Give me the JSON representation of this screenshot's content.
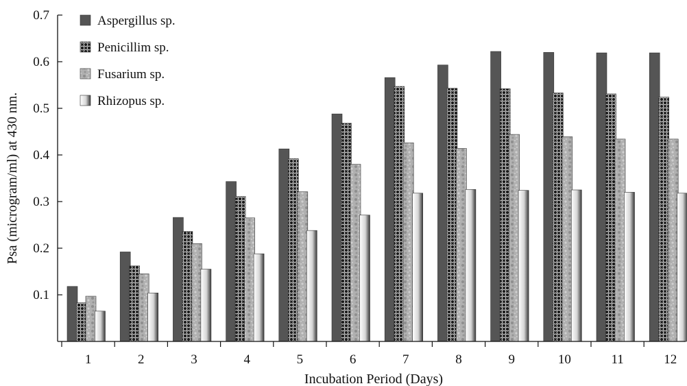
{
  "chart_data": {
    "type": "bar",
    "xlabel": "Incubation Period (Days)",
    "ylabel": "Psa (microgram/ml) at 430 nm.",
    "ylim": [
      0,
      0.7
    ],
    "yticks": [
      "0.1",
      "0.2",
      "0.3",
      "0.4",
      "0.5",
      "0.6",
      "0.7"
    ],
    "categories": [
      "1",
      "2",
      "3",
      "4",
      "5",
      "6",
      "7",
      "8",
      "9",
      "10",
      "11",
      "12"
    ],
    "legend_position": "top-left",
    "grid": false,
    "series": [
      {
        "name": "Aspergillus sp.",
        "color": "#555555",
        "pattern": "solid",
        "values": [
          0.118,
          0.192,
          0.266,
          0.343,
          0.413,
          0.488,
          0.566,
          0.593,
          0.622,
          0.62,
          0.619,
          0.619
        ]
      },
      {
        "name": "Penicillim sp.",
        "color": "#1a1a1a",
        "pattern": "crosshatch",
        "values": [
          0.083,
          0.162,
          0.236,
          0.311,
          0.392,
          0.468,
          0.547,
          0.543,
          0.542,
          0.533,
          0.531,
          0.524
        ]
      },
      {
        "name": "Fusarium sp.",
        "color": "#a8a8a8",
        "pattern": "mottled",
        "values": [
          0.097,
          0.145,
          0.21,
          0.265,
          0.321,
          0.38,
          0.426,
          0.414,
          0.444,
          0.439,
          0.434,
          0.434
        ]
      },
      {
        "name": "Rhizopus sp.",
        "color": "#dddddd",
        "pattern": "gradient",
        "values": [
          0.065,
          0.104,
          0.155,
          0.188,
          0.238,
          0.271,
          0.318,
          0.326,
          0.324,
          0.325,
          0.32,
          0.318
        ]
      }
    ]
  }
}
